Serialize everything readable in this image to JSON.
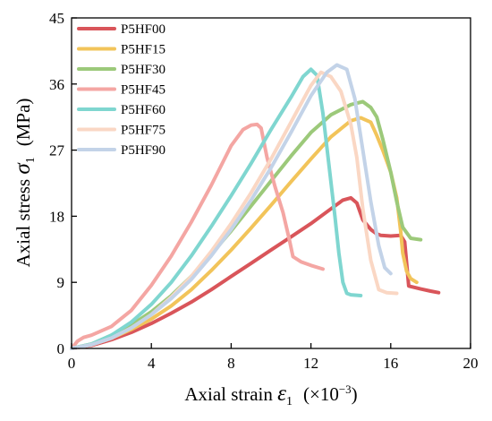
{
  "chart_data": {
    "type": "line",
    "xlabel": {
      "main": "Axial strain ",
      "symbol": "ε",
      "sub": "1",
      "unit": "(×10",
      "unit_exp": "−3",
      "unit_end": ")"
    },
    "ylabel": {
      "main": "Axial stress ",
      "symbol": "σ",
      "sub": "1",
      "unit": "(MPa)"
    },
    "xlim": [
      0,
      20
    ],
    "ylim": [
      0,
      45
    ],
    "xticks": [
      0,
      4,
      8,
      12,
      16,
      20
    ],
    "yticks": [
      0,
      9,
      18,
      27,
      36,
      45
    ],
    "grid": false,
    "legend_position": "top-left",
    "series": [
      {
        "name": "P5HF00",
        "color": "#d9555a",
        "x": [
          0,
          1,
          2,
          3,
          4,
          5,
          6,
          7,
          8,
          9,
          10,
          11,
          12,
          13,
          13.6,
          14.0,
          14.3,
          14.6,
          15.0,
          15.3,
          15.5,
          16.0,
          16.5,
          16.7,
          16.9,
          17.5,
          18.0,
          18.4
        ],
        "y": [
          0,
          0.4,
          1.2,
          2.2,
          3.4,
          4.8,
          6.3,
          8.0,
          9.8,
          11.6,
          13.4,
          15.2,
          17.0,
          19.0,
          20.2,
          20.5,
          19.8,
          17.5,
          16.2,
          15.6,
          15.4,
          15.3,
          15.4,
          14.5,
          8.5,
          8.1,
          7.8,
          7.6
        ]
      },
      {
        "name": "P5HF15",
        "color": "#f2c45a",
        "x": [
          0,
          1,
          2,
          3,
          4,
          5,
          6,
          7,
          8,
          9,
          10,
          11,
          12,
          13,
          14,
          14.5,
          15.0,
          15.3,
          15.6,
          16.0,
          16.3,
          16.5,
          16.6,
          16.8,
          17.0,
          17.3
        ],
        "y": [
          0,
          0.5,
          1.4,
          2.6,
          4.0,
          5.8,
          8.0,
          10.6,
          13.4,
          16.4,
          19.5,
          22.7,
          25.8,
          28.8,
          31.0,
          31.4,
          30.8,
          29.0,
          27.0,
          24.0,
          20.5,
          16.0,
          13.0,
          10.5,
          9.5,
          9.0
        ]
      },
      {
        "name": "P5HF30",
        "color": "#9cc97a",
        "x": [
          0,
          1,
          2,
          3,
          4,
          5,
          6,
          7,
          8,
          9,
          10,
          11,
          12,
          13,
          14,
          14.6,
          15.0,
          15.3,
          15.6,
          16.0,
          16.3,
          16.6,
          17.0,
          17.5
        ],
        "y": [
          0,
          0.6,
          1.8,
          3.2,
          5.0,
          7.2,
          9.8,
          12.8,
          16.0,
          19.4,
          22.8,
          26.2,
          29.4,
          31.8,
          33.2,
          33.6,
          32.8,
          31.5,
          28.5,
          24.0,
          20.0,
          16.5,
          15.0,
          14.8
        ]
      },
      {
        "name": "P5HF45",
        "color": "#f4a6a3",
        "x": [
          0,
          0.3,
          0.6,
          1,
          2,
          3,
          4,
          5,
          6,
          7,
          8,
          8.6,
          9.0,
          9.3,
          9.5,
          9.8,
          10.2,
          10.6,
          10.9,
          11.1,
          11.5,
          12.0,
          12.6
        ],
        "y": [
          0,
          1.0,
          1.5,
          1.8,
          3.0,
          5.2,
          8.6,
          12.6,
          17.2,
          22.2,
          27.6,
          29.8,
          30.4,
          30.5,
          30.0,
          26.0,
          22.0,
          18.5,
          15.0,
          12.5,
          11.8,
          11.3,
          10.8
        ]
      },
      {
        "name": "P5HF60",
        "color": "#7fd6d0",
        "x": [
          0,
          1,
          2,
          3,
          4,
          5,
          6,
          7,
          8,
          9,
          10,
          11,
          11.6,
          12.0,
          12.3,
          12.6,
          12.9,
          13.2,
          13.4,
          13.6,
          13.8,
          14.0,
          14.5
        ],
        "y": [
          0,
          0.6,
          1.8,
          3.6,
          6.0,
          9.0,
          12.6,
          16.6,
          20.8,
          25.2,
          29.8,
          34.2,
          37.0,
          38.0,
          37.2,
          32.0,
          25.0,
          18.0,
          13.0,
          9.0,
          7.5,
          7.3,
          7.2
        ]
      },
      {
        "name": "P5HF75",
        "color": "#fad7c4",
        "x": [
          0,
          1,
          2,
          3,
          4,
          5,
          6,
          7,
          8,
          9,
          10,
          11,
          12,
          12.5,
          13.0,
          13.5,
          14.0,
          14.3,
          14.6,
          15.0,
          15.4,
          15.8,
          16.3
        ],
        "y": [
          0,
          0.5,
          1.4,
          2.8,
          4.6,
          7.0,
          9.8,
          13.2,
          17.0,
          21.2,
          25.8,
          30.8,
          35.8,
          37.6,
          37.0,
          35.0,
          30.5,
          26.0,
          19.0,
          12.0,
          8.0,
          7.6,
          7.5
        ]
      },
      {
        "name": "P5HF90",
        "color": "#c3d3e8",
        "x": [
          0,
          1,
          2,
          3,
          4,
          5,
          6,
          7,
          8,
          9,
          10,
          11,
          12,
          12.8,
          13.3,
          13.8,
          14.2,
          14.6,
          15.0,
          15.4,
          15.7,
          16.0
        ],
        "y": [
          0,
          0.5,
          1.4,
          2.8,
          4.6,
          6.8,
          9.4,
          12.6,
          16.2,
          20.2,
          24.6,
          29.4,
          34.4,
          37.6,
          38.6,
          38.0,
          34.0,
          27.0,
          20.0,
          14.0,
          11.0,
          10.2
        ]
      }
    ]
  }
}
